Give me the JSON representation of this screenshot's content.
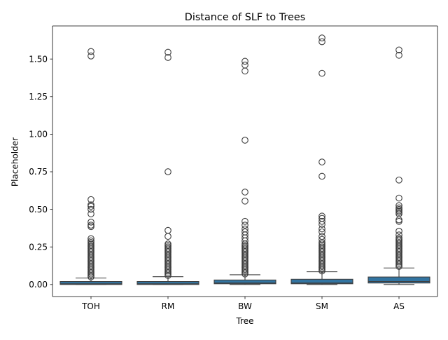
{
  "chart_data": {
    "type": "box",
    "title": "Distance of SLF to Trees",
    "xlabel": "Tree",
    "ylabel": "Placeholder",
    "categories": [
      "TOH",
      "RM",
      "BW",
      "SM",
      "AS"
    ],
    "ylim": [
      -0.08,
      1.72
    ],
    "yticks": [
      0.0,
      0.25,
      0.5,
      0.75,
      1.0,
      1.25,
      1.5
    ],
    "ytick_labels": [
      "0.00",
      "0.25",
      "0.50",
      "0.75",
      "1.00",
      "1.25",
      "1.50"
    ],
    "grid": false,
    "box_color": "#3274a1",
    "boxes": [
      {
        "category": "TOH",
        "whisker_low": 0.0,
        "q1": 0.0,
        "median": 0.005,
        "q3": 0.02,
        "whisker_high": 0.043,
        "outliers": [
          1.55,
          1.52,
          0.565,
          0.53,
          0.52,
          0.5,
          0.47,
          0.415,
          0.395,
          0.385,
          0.305,
          0.29,
          0.28,
          0.27,
          0.26,
          0.25,
          0.24,
          0.23,
          0.22,
          0.21,
          0.2,
          0.19,
          0.18,
          0.17,
          0.16,
          0.15,
          0.14,
          0.13,
          0.12,
          0.11,
          0.1,
          0.09,
          0.08,
          0.07,
          0.06,
          0.05
        ]
      },
      {
        "category": "RM",
        "whisker_low": 0.0,
        "q1": 0.0,
        "median": 0.005,
        "q3": 0.02,
        "whisker_high": 0.052,
        "outliers": [
          1.545,
          1.51,
          0.75,
          0.36,
          0.32,
          0.27,
          0.26,
          0.25,
          0.24,
          0.23,
          0.22,
          0.21,
          0.2,
          0.19,
          0.18,
          0.17,
          0.16,
          0.15,
          0.14,
          0.13,
          0.12,
          0.11,
          0.1,
          0.09,
          0.08,
          0.07,
          0.06
        ]
      },
      {
        "category": "BW",
        "whisker_low": 0.0,
        "q1": 0.005,
        "median": 0.01,
        "q3": 0.03,
        "whisker_high": 0.065,
        "outliers": [
          1.485,
          1.46,
          1.42,
          0.96,
          0.615,
          0.555,
          0.42,
          0.395,
          0.37,
          0.35,
          0.33,
          0.31,
          0.29,
          0.27,
          0.26,
          0.25,
          0.24,
          0.23,
          0.22,
          0.21,
          0.2,
          0.19,
          0.18,
          0.17,
          0.16,
          0.15,
          0.14,
          0.13,
          0.12,
          0.11,
          0.1,
          0.09,
          0.08,
          0.07
        ]
      },
      {
        "category": "SM",
        "whisker_low": 0.0,
        "q1": 0.005,
        "median": 0.01,
        "q3": 0.035,
        "whisker_high": 0.085,
        "outliers": [
          1.64,
          1.615,
          1.405,
          0.815,
          0.72,
          0.455,
          0.44,
          0.42,
          0.4,
          0.37,
          0.35,
          0.32,
          0.3,
          0.28,
          0.27,
          0.26,
          0.25,
          0.24,
          0.23,
          0.22,
          0.21,
          0.2,
          0.19,
          0.18,
          0.17,
          0.16,
          0.15,
          0.14,
          0.13,
          0.12,
          0.11,
          0.1,
          0.09
        ]
      },
      {
        "category": "AS",
        "whisker_low": 0.0,
        "q1": 0.01,
        "median": 0.02,
        "q3": 0.05,
        "whisker_high": 0.11,
        "outliers": [
          1.56,
          1.525,
          0.695,
          0.575,
          0.525,
          0.51,
          0.5,
          0.49,
          0.48,
          0.47,
          0.43,
          0.42,
          0.355,
          0.33,
          0.31,
          0.3,
          0.29,
          0.28,
          0.27,
          0.26,
          0.25,
          0.24,
          0.23,
          0.22,
          0.21,
          0.2,
          0.19,
          0.18,
          0.17,
          0.16,
          0.15,
          0.14,
          0.13,
          0.12
        ]
      }
    ]
  }
}
